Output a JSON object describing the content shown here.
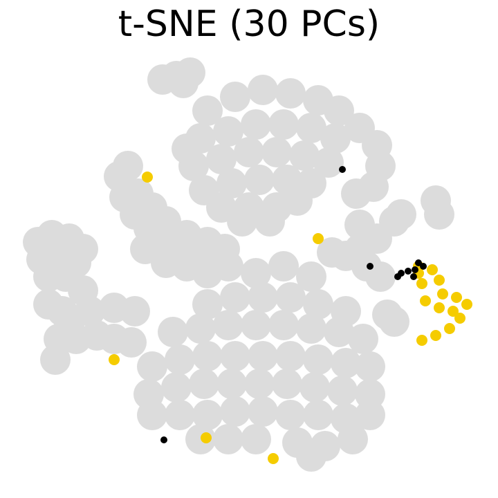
{
  "chart_data": {
    "type": "scatter",
    "title": "t-SNE (30 PCs)",
    "xlim": [
      0,
      72
    ],
    "ylim": [
      0,
      72
    ],
    "series": [
      {
        "color": "#dcdcdc",
        "x": [
          30,
          34,
          38,
          42,
          46,
          49,
          29,
          33,
          37,
          41,
          45,
          48.5,
          28,
          32,
          36,
          40,
          44,
          47.5,
          29.5,
          33.5,
          37.5,
          41.5,
          45,
          32,
          36,
          40,
          43,
          35,
          39,
          27,
          23.5,
          25.5,
          27.5,
          26.5,
          17.2,
          18,
          19.5,
          21.5,
          23.5,
          26,
          28.5,
          31,
          33,
          21,
          24,
          27,
          30,
          20,
          22,
          24,
          27,
          30,
          32.5,
          18.5,
          5.5,
          7.5,
          10,
          12,
          6,
          8.5,
          11,
          7,
          9.5,
          7,
          9,
          10,
          8.5,
          8,
          11,
          14,
          16.5,
          19,
          13,
          16.5,
          19.5,
          12,
          37,
          41,
          45,
          30,
          34,
          38,
          42,
          46,
          50,
          25,
          29,
          33,
          37,
          41,
          45,
          49,
          52.5,
          22,
          26,
          30,
          34,
          38,
          42,
          46,
          50,
          53.5,
          21.5,
          25.5,
          29.5,
          33.5,
          37.5,
          41.5,
          45.5,
          49.5,
          53.5,
          22,
          26,
          30,
          34,
          38,
          42,
          46,
          50,
          53.5,
          29,
          33,
          37,
          43,
          47,
          51,
          45,
          52,
          54.5,
          55,
          54,
          51.5,
          52,
          54.5,
          57,
          58,
          50,
          53,
          55,
          63,
          63.5,
          56,
          57,
          48,
          52
        ],
        "y": [
          56,
          58,
          59,
          58.5,
          57.5,
          56,
          52,
          53,
          54,
          54,
          53.5,
          52,
          48,
          49,
          50,
          50,
          49.5,
          48.5,
          44.5,
          45.5,
          46,
          46,
          45.5,
          42,
          42,
          42,
          43,
          40,
          40,
          50.5,
          60.5,
          61,
          61.5,
          60,
          46.5,
          43.5,
          41,
          39,
          37.5,
          36,
          35,
          34.5,
          33.5,
          36,
          34,
          33.5,
          32.5,
          44,
          42,
          40,
          38,
          37,
          36,
          48,
          37,
          38,
          37.5,
          36,
          34.5,
          34.5,
          34,
          32,
          32,
          28,
          27,
          25,
          23,
          20,
          23,
          23.5,
          23,
          22.5,
          27,
          27.5,
          27,
          30,
          32.5,
          33.5,
          32,
          28,
          29,
          29,
          29,
          28,
          27,
          24,
          24.5,
          25,
          25,
          25,
          24.5,
          24,
          23,
          19,
          20,
          20.5,
          20.5,
          20.5,
          20.5,
          20,
          19.5,
          19,
          15,
          16,
          16.5,
          16.5,
          16.5,
          16.5,
          16,
          15.5,
          15,
          12,
          12,
          12,
          12.5,
          12.5,
          12,
          12,
          11.5,
          12,
          8.5,
          8.5,
          8.5,
          8,
          7.5,
          8.5,
          6,
          53.5,
          51,
          48,
          45,
          44,
          39.5,
          37.5,
          40,
          41,
          35,
          33.5,
          32,
          43,
          41,
          26.5,
          25.5,
          35.5,
          36
        ]
      },
      {
        "color": "#f5cc00",
        "x": [
          60.5,
          62.5,
          63.5,
          61,
          64,
          66,
          67.5,
          65.5,
          63.5,
          61.5,
          66.5,
          65,
          63,
          61,
          60.5,
          46,
          39.5,
          29.8,
          16.5,
          21.3
        ],
        "y": [
          32.5,
          33,
          31.5,
          31,
          29.5,
          29,
          28,
          27,
          27.5,
          28.5,
          26,
          24.5,
          23.5,
          22.8,
          33.5,
          37.5,
          5.7,
          8.7,
          20,
          46.4
        ]
      },
      {
        "color": "#000000",
        "x": [
          57.5,
          58,
          59,
          60,
          60.5,
          61.2,
          59.8,
          53.5,
          23.7,
          49.5
        ],
        "y": [
          32,
          32.5,
          32.8,
          33,
          34,
          33.5,
          32,
          33.5,
          8.4,
          47.5
        ]
      }
    ]
  }
}
